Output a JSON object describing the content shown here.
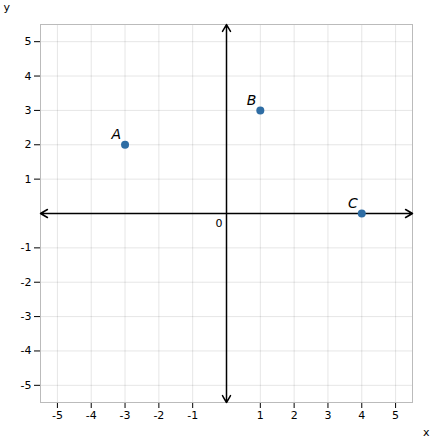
{
  "chart_data": {
    "type": "scatter",
    "labels": [
      "A",
      "B",
      "C"
    ],
    "x": [
      -3,
      1,
      4
    ],
    "values": [
      2,
      3,
      0
    ],
    "color": "#2E6DA4",
    "xlim": [
      -5.5,
      5.5
    ],
    "ylim": [
      -5.5,
      5.5
    ],
    "xticks": [
      -5,
      -4,
      -3,
      -2,
      -1,
      1,
      2,
      3,
      4,
      5
    ],
    "yticks": [
      -5,
      -4,
      -3,
      -2,
      -1,
      1,
      2,
      3,
      4,
      5
    ],
    "xlabel": "x",
    "ylabel": "y",
    "annotations": [
      {
        "text": "0",
        "x": 0,
        "y": 0
      }
    ],
    "grid": true
  }
}
